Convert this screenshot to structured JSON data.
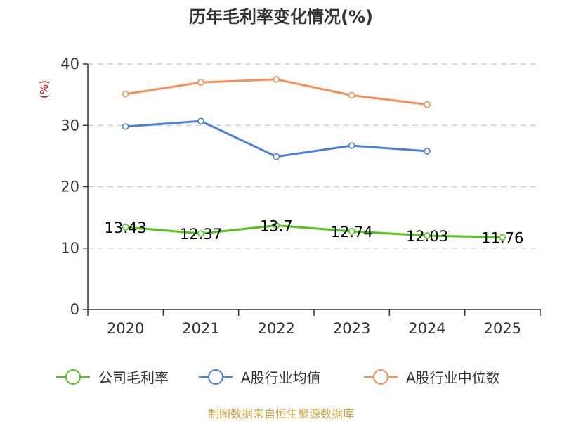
{
  "chart_data": {
    "type": "line",
    "title": "历年毛利率变化情况(%)",
    "ylabel": "(%)",
    "xlabel": "",
    "categories": [
      "2020",
      "2021",
      "2022",
      "2023",
      "2024",
      "2025"
    ],
    "ylim": [
      0,
      40
    ],
    "yticks": [
      0,
      10,
      20,
      30,
      40
    ],
    "grid": true,
    "legend_position": "bottom",
    "series": [
      {
        "name": "公司毛利率",
        "color": "#52c41a",
        "values": [
          13.43,
          12.37,
          13.7,
          12.74,
          12.03,
          11.76
        ],
        "labels": [
          "13.43",
          "12.37",
          "13.7",
          "12.74",
          "12.03",
          "11.76"
        ]
      },
      {
        "name": "A股行业均值",
        "color": "#4a7fe0",
        "values": [
          29.8,
          30.7,
          24.9,
          26.7,
          25.8,
          null
        ]
      },
      {
        "name": "A股行业中位数",
        "color": "#f79056",
        "values": [
          35.1,
          37.0,
          37.5,
          34.9,
          33.4,
          null
        ]
      }
    ]
  },
  "source": "制图数据来自恒生聚源数据库"
}
